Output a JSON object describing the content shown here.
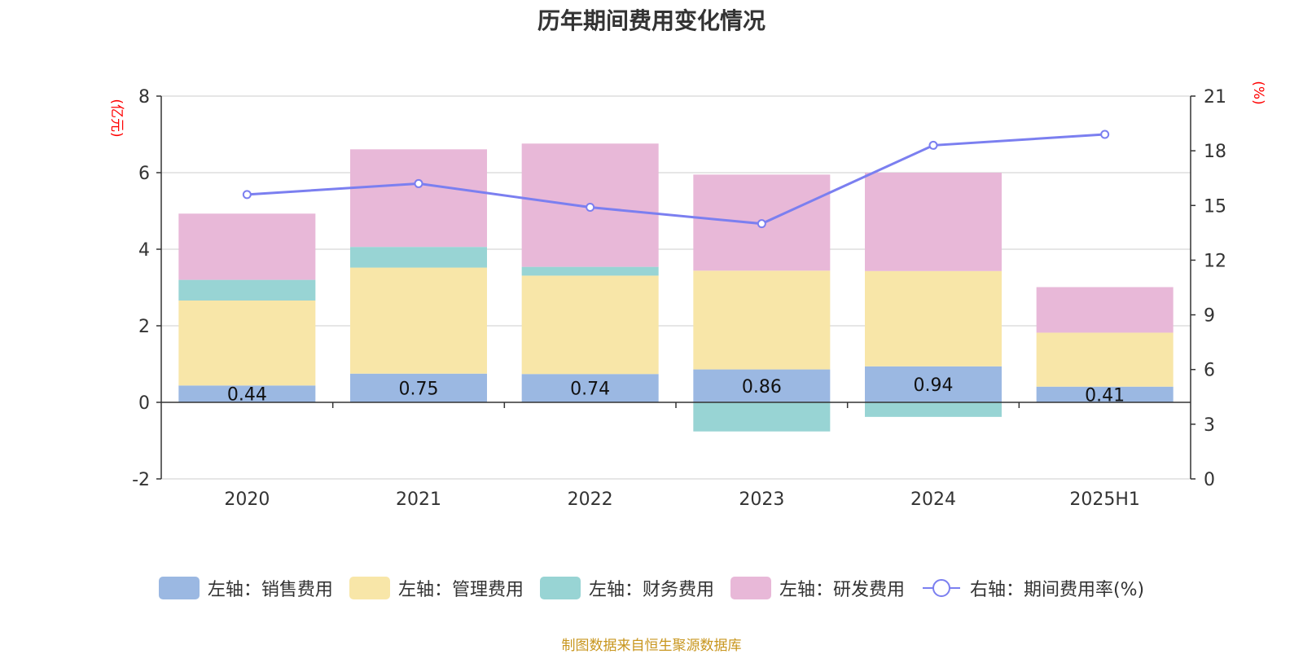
{
  "chart_data": {
    "title": "历年期间费用变化情况",
    "type": "bar",
    "categories": [
      "2020",
      "2021",
      "2022",
      "2023",
      "2024",
      "2025H1"
    ],
    "left_axis": {
      "label": "(亿元)",
      "ylim": [
        -2,
        8
      ],
      "ticks": [
        -2,
        0,
        2,
        4,
        6,
        8
      ]
    },
    "right_axis": {
      "label": "(%)",
      "ylim": [
        0,
        21
      ],
      "ticks": [
        0,
        3,
        6,
        9,
        12,
        15,
        18,
        21
      ]
    },
    "series": [
      {
        "name": "左轴：销售费用",
        "kind": "stacked-bar",
        "color": "#9bb8e2",
        "values": [
          0.44,
          0.75,
          0.74,
          0.86,
          0.94,
          0.41
        ],
        "show_labels": true
      },
      {
        "name": "左轴：管理费用",
        "kind": "stacked-bar",
        "color": "#f8e6a8",
        "values": [
          2.22,
          2.77,
          2.57,
          2.58,
          2.49,
          1.41
        ]
      },
      {
        "name": "左轴：财务费用",
        "kind": "stacked-bar",
        "color": "#98d4d4",
        "values": [
          0.54,
          0.54,
          0.23,
          -0.76,
          -0.38,
          0.0
        ]
      },
      {
        "name": "左轴：研发费用",
        "kind": "stacked-bar",
        "color": "#e8b8d8",
        "values": [
          1.73,
          2.55,
          3.22,
          2.51,
          2.57,
          1.19
        ]
      },
      {
        "name": "右轴：期间费用率(%)",
        "kind": "line",
        "axis": "right",
        "color": "#7b7ff0",
        "values": [
          15.6,
          16.2,
          14.9,
          14.0,
          18.3,
          18.9
        ]
      }
    ],
    "grid": true,
    "legend_position": "bottom"
  },
  "source_text": "制图数据来自恒生聚源数据库",
  "colors": {
    "axis_label": "#ff0000",
    "tick_text": "#333333",
    "grid": "#cccccc"
  }
}
